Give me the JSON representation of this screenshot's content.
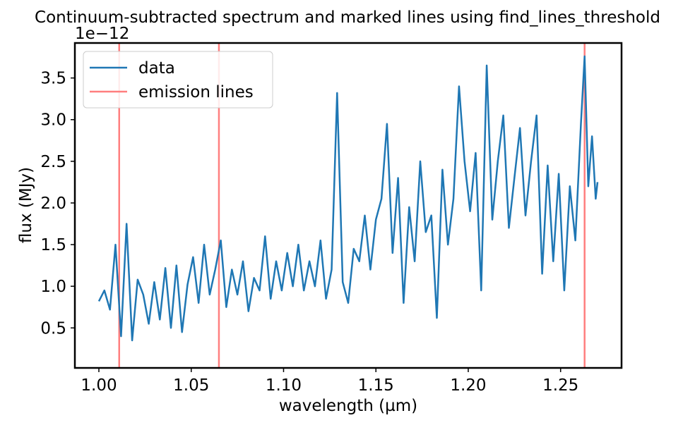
{
  "chart_data": {
    "type": "line",
    "title": "Continuum-subtracted spectrum and marked lines using find_lines_threshold",
    "xlabel": "wavelength (µm)",
    "ylabel": "flux (MJy)",
    "y_offset_text": "1e−12",
    "y_multiplier": 1e-12,
    "xlim": [
      0.987,
      1.283
    ],
    "ylim": [
      0.02,
      3.92
    ],
    "xticks": [
      1.0,
      1.05,
      1.1,
      1.15,
      1.2,
      1.25
    ],
    "xtick_labels": [
      "1.00",
      "1.05",
      "1.10",
      "1.15",
      "1.20",
      "1.25"
    ],
    "yticks": [
      0.5,
      1.0,
      1.5,
      2.0,
      2.5,
      3.0,
      3.5
    ],
    "ytick_labels": [
      "0.5",
      "1.0",
      "1.5",
      "2.0",
      "2.5",
      "3.0",
      "3.5"
    ],
    "grid": false,
    "legend_position": "top-left",
    "legend": [
      "data",
      "emission lines"
    ],
    "colors": {
      "data": "#1f77b4",
      "emission_lines": "#ff7f7f",
      "frame": "#000000"
    },
    "series": [
      {
        "name": "data",
        "x": [
          1.0,
          1.003,
          1.006,
          1.009,
          1.012,
          1.015,
          1.018,
          1.021,
          1.024,
          1.027,
          1.03,
          1.033,
          1.036,
          1.039,
          1.042,
          1.045,
          1.048,
          1.051,
          1.054,
          1.057,
          1.06,
          1.063,
          1.066,
          1.069,
          1.072,
          1.075,
          1.078,
          1.081,
          1.084,
          1.087,
          1.09,
          1.093,
          1.096,
          1.099,
          1.102,
          1.105,
          1.108,
          1.111,
          1.114,
          1.117,
          1.12,
          1.123,
          1.126,
          1.129,
          1.132,
          1.135,
          1.138,
          1.141,
          1.144,
          1.147,
          1.15,
          1.153,
          1.156,
          1.159,
          1.162,
          1.165,
          1.168,
          1.171,
          1.174,
          1.177,
          1.18,
          1.183,
          1.186,
          1.189,
          1.192,
          1.195,
          1.198,
          1.201,
          1.204,
          1.207,
          1.21,
          1.213,
          1.216,
          1.219,
          1.222,
          1.225,
          1.228,
          1.231,
          1.234,
          1.237,
          1.24,
          1.243,
          1.246,
          1.249,
          1.252,
          1.255,
          1.258,
          1.261,
          1.263,
          1.265,
          1.267,
          1.269,
          1.27
        ],
        "y": [
          0.82,
          0.95,
          0.72,
          1.5,
          0.4,
          1.75,
          0.35,
          1.08,
          0.9,
          0.55,
          1.05,
          0.6,
          1.22,
          0.5,
          1.25,
          0.45,
          1.02,
          1.35,
          0.8,
          1.5,
          0.9,
          1.2,
          1.55,
          0.75,
          1.2,
          0.9,
          1.3,
          0.7,
          1.1,
          0.95,
          1.6,
          0.85,
          1.3,
          0.95,
          1.4,
          1.0,
          1.5,
          0.95,
          1.3,
          1.0,
          1.55,
          0.85,
          1.2,
          3.32,
          1.05,
          0.8,
          1.45,
          1.3,
          1.85,
          1.2,
          1.8,
          2.05,
          2.95,
          1.4,
          2.3,
          0.8,
          1.95,
          1.3,
          2.5,
          1.65,
          1.85,
          0.62,
          2.4,
          1.5,
          2.05,
          3.4,
          2.5,
          1.9,
          2.6,
          0.95,
          3.65,
          1.8,
          2.5,
          3.05,
          1.7,
          2.3,
          2.9,
          1.85,
          2.5,
          3.05,
          1.15,
          2.45,
          1.3,
          2.35,
          0.95,
          2.2,
          1.55,
          2.95,
          3.76,
          2.2,
          2.8,
          2.05,
          2.25
        ]
      },
      {
        "name": "emission lines",
        "x": [
          1.011,
          1.065,
          1.263
        ]
      }
    ]
  }
}
